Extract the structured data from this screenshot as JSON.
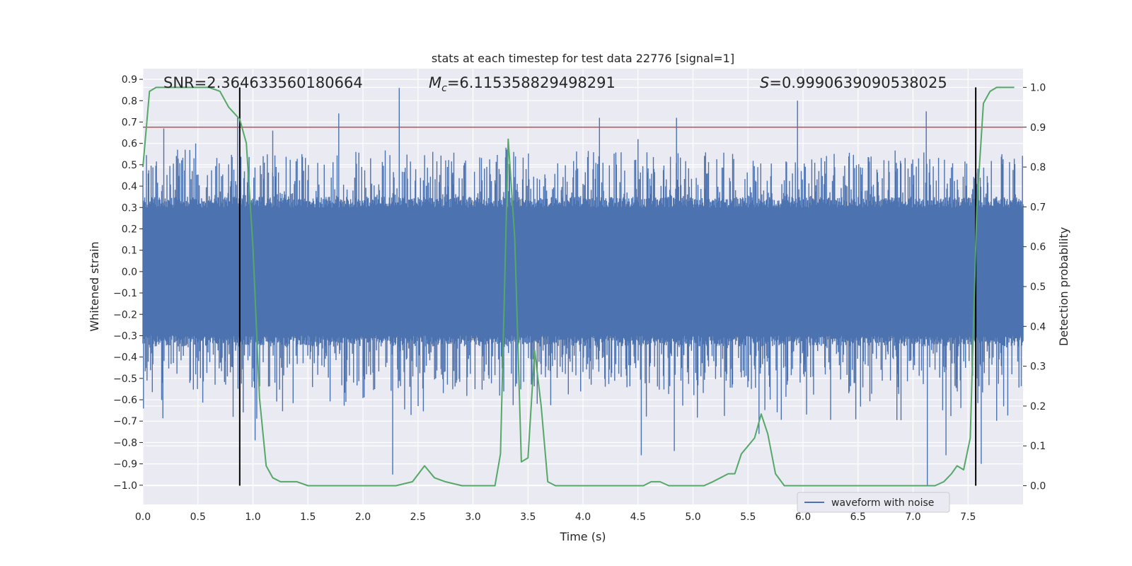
{
  "chart_data": {
    "type": "line",
    "title": "stats at each timestep for test data 22776 [signal=1]",
    "xlabel": "Time (s)",
    "ylabel": "Whitened strain",
    "y2label": "Detection probability",
    "xlim": [
      0.0,
      8.0
    ],
    "ylim": [
      -1.09,
      0.95
    ],
    "y2lim": [
      -0.047,
      1.047
    ],
    "xticks": [
      0.0,
      0.5,
      1.0,
      1.5,
      2.0,
      2.5,
      3.0,
      3.5,
      4.0,
      4.5,
      5.0,
      5.5,
      6.0,
      6.5,
      7.0,
      7.5
    ],
    "yticks": [
      0.9,
      0.8,
      0.7,
      0.6,
      0.5,
      0.4,
      0.3,
      0.2,
      0.1,
      0.0,
      -0.1,
      -0.2,
      -0.3,
      -0.4,
      -0.5,
      -0.6,
      -0.7,
      -0.8,
      -0.9,
      -1.0
    ],
    "y2ticks": [
      1.0,
      0.9,
      0.8,
      0.7,
      0.6,
      0.5,
      0.4,
      0.3,
      0.2,
      0.1,
      0.0
    ],
    "grid": true,
    "legend": {
      "location": "lower-right",
      "entries": [
        "waveform with noise"
      ]
    },
    "annotations": {
      "snr": "SNR=2.364633560180664",
      "mc_symbol": "M",
      "mc_sub": "c",
      "mc_value": "=6.115358829498291",
      "s_symbol": "S",
      "s_value": "=0.9990639090538025"
    },
    "threshold": {
      "axis": "right",
      "value": 0.9,
      "color": "#c44e52"
    },
    "vertical_lines": [
      0.88,
      7.57
    ],
    "series": [
      {
        "name": "waveform with noise",
        "axis": "left",
        "color": "#4c72b0",
        "kind": "noise",
        "core_amplitude": 0.3,
        "typical_peak": [
          0.35,
          0.58
        ],
        "notable_peaks": [
          [
            0.19,
            0.67
          ],
          [
            0.48,
            0.6
          ],
          [
            0.86,
            0.72
          ],
          [
            1.18,
            0.66
          ],
          [
            1.78,
            0.74
          ],
          [
            2.33,
            0.86
          ],
          [
            2.27,
            -0.95
          ],
          [
            3.3,
            0.58
          ],
          [
            4.15,
            0.72
          ],
          [
            4.5,
            0.62
          ],
          [
            4.85,
            0.72
          ],
          [
            5.95,
            0.8
          ],
          [
            7.12,
            0.75
          ],
          [
            7.13,
            -1.0
          ],
          [
            7.3,
            -0.86
          ],
          [
            7.62,
            -0.9
          ],
          [
            0.82,
            -0.68
          ],
          [
            1.02,
            -0.79
          ],
          [
            4.53,
            -0.86
          ],
          [
            4.83,
            -0.84
          ],
          [
            5.6,
            -0.76
          ]
        ]
      },
      {
        "name": "detection probability",
        "axis": "right",
        "color": "#55a868",
        "x": [
          0.0,
          0.06,
          0.12,
          0.2,
          0.3,
          0.4,
          0.5,
          0.6,
          0.7,
          0.78,
          0.88,
          0.94,
          1.0,
          1.06,
          1.12,
          1.18,
          1.25,
          1.32,
          1.4,
          1.5,
          1.6,
          1.75,
          1.9,
          2.0,
          2.15,
          2.3,
          2.45,
          2.56,
          2.65,
          2.75,
          2.9,
          3.0,
          3.1,
          3.2,
          3.25,
          3.32,
          3.38,
          3.44,
          3.5,
          3.56,
          3.62,
          3.68,
          3.75,
          3.85,
          4.0,
          4.2,
          4.4,
          4.55,
          4.62,
          4.7,
          4.78,
          4.9,
          5.0,
          5.1,
          5.18,
          5.25,
          5.32,
          5.38,
          5.44,
          5.5,
          5.56,
          5.62,
          5.68,
          5.75,
          5.83,
          5.92,
          6.1,
          6.3,
          6.55,
          6.75,
          7.0,
          7.12,
          7.2,
          7.28,
          7.35,
          7.4,
          7.46,
          7.52,
          7.58,
          7.64,
          7.7,
          7.76,
          7.84,
          7.92
        ],
        "y": [
          0.8,
          0.99,
          1.0,
          1.0,
          1.0,
          1.0,
          1.0,
          1.0,
          0.99,
          0.95,
          0.92,
          0.86,
          0.6,
          0.22,
          0.05,
          0.02,
          0.01,
          0.01,
          0.01,
          0.0,
          0.0,
          0.0,
          0.0,
          0.0,
          0.0,
          0.0,
          0.01,
          0.05,
          0.02,
          0.01,
          0.0,
          0.0,
          0.0,
          0.0,
          0.08,
          0.87,
          0.62,
          0.06,
          0.07,
          0.34,
          0.2,
          0.01,
          0.0,
          0.0,
          0.0,
          0.0,
          0.0,
          0.0,
          0.01,
          0.01,
          0.0,
          0.0,
          0.0,
          0.0,
          0.01,
          0.02,
          0.03,
          0.03,
          0.08,
          0.1,
          0.12,
          0.18,
          0.13,
          0.03,
          0.0,
          0.0,
          0.0,
          0.0,
          0.0,
          0.0,
          0.0,
          0.0,
          0.0,
          0.01,
          0.03,
          0.05,
          0.04,
          0.12,
          0.7,
          0.96,
          0.99,
          1.0,
          1.0,
          1.0
        ]
      }
    ]
  }
}
